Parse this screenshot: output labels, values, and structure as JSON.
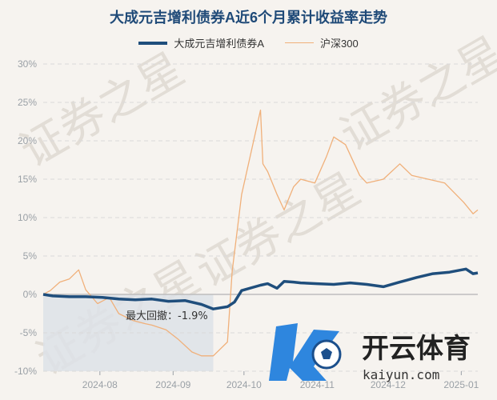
{
  "chart_data": {
    "type": "line",
    "title": "大成元吉增利债券A近6个月累计收益率走势",
    "ylim": [
      -10,
      30
    ],
    "ytick_labels": [
      "30%",
      "25%",
      "20%",
      "15%",
      "10%",
      "5%",
      "0%",
      "-5%",
      "-10%"
    ],
    "xtick_labels": [
      "2024-08",
      "2024-09",
      "2024-10",
      "2024-11",
      "2024-12",
      "2025-01"
    ],
    "x_range": [
      "2024-07-08",
      "2025-01-08"
    ],
    "grid": true,
    "legend_position": "top-center",
    "series": [
      {
        "name": "大成元吉增利债券A",
        "color": "#1f4e7c",
        "points": [
          [
            "2024-07-08",
            0.0
          ],
          [
            "2024-07-12",
            -0.2
          ],
          [
            "2024-07-19",
            -0.3
          ],
          [
            "2024-07-26",
            -0.3
          ],
          [
            "2024-08-02",
            -0.4
          ],
          [
            "2024-08-09",
            -0.6
          ],
          [
            "2024-08-16",
            -0.7
          ],
          [
            "2024-08-23",
            -0.6
          ],
          [
            "2024-08-30",
            -0.9
          ],
          [
            "2024-09-06",
            -0.8
          ],
          [
            "2024-09-13",
            -1.3
          ],
          [
            "2024-09-18",
            -1.9
          ],
          [
            "2024-09-24",
            -1.6
          ],
          [
            "2024-09-27",
            -1.0
          ],
          [
            "2024-09-30",
            0.5
          ],
          [
            "2024-10-08",
            1.2
          ],
          [
            "2024-10-11",
            1.4
          ],
          [
            "2024-10-15",
            0.8
          ],
          [
            "2024-10-18",
            1.7
          ],
          [
            "2024-10-22",
            1.6
          ],
          [
            "2024-10-25",
            1.5
          ],
          [
            "2024-11-01",
            1.4
          ],
          [
            "2024-11-08",
            1.3
          ],
          [
            "2024-11-15",
            1.5
          ],
          [
            "2024-11-22",
            1.3
          ],
          [
            "2024-11-29",
            1.0
          ],
          [
            "2024-12-06",
            1.6
          ],
          [
            "2024-12-13",
            2.2
          ],
          [
            "2024-12-20",
            2.7
          ],
          [
            "2024-12-27",
            2.9
          ],
          [
            "2025-01-03",
            3.3
          ],
          [
            "2025-01-06",
            2.7
          ],
          [
            "2025-01-08",
            2.8
          ]
        ]
      },
      {
        "name": "沪深300",
        "color": "#f0b07a",
        "points": [
          [
            "2024-07-08",
            0.0
          ],
          [
            "2024-07-11",
            0.5
          ],
          [
            "2024-07-15",
            1.6
          ],
          [
            "2024-07-19",
            2.0
          ],
          [
            "2024-07-23",
            3.2
          ],
          [
            "2024-07-26",
            0.6
          ],
          [
            "2024-07-31",
            -1.2
          ],
          [
            "2024-08-05",
            -0.4
          ],
          [
            "2024-08-09",
            -2.5
          ],
          [
            "2024-08-15",
            -3.4
          ],
          [
            "2024-08-20",
            -3.8
          ],
          [
            "2024-08-23",
            -4.0
          ],
          [
            "2024-08-29",
            -4.6
          ],
          [
            "2024-09-03",
            -5.8
          ],
          [
            "2024-09-09",
            -7.5
          ],
          [
            "2024-09-13",
            -8.0
          ],
          [
            "2024-09-18",
            -8.0
          ],
          [
            "2024-09-24",
            -6.2
          ],
          [
            "2024-09-26",
            3.0
          ],
          [
            "2024-09-30",
            13.0
          ],
          [
            "2024-10-08",
            24.0
          ],
          [
            "2024-10-09",
            17.0
          ],
          [
            "2024-10-11",
            16.0
          ],
          [
            "2024-10-15",
            13.0
          ],
          [
            "2024-10-18",
            11.0
          ],
          [
            "2024-10-22",
            14.0
          ],
          [
            "2024-10-25",
            15.0
          ],
          [
            "2024-10-31",
            14.5
          ],
          [
            "2024-11-05",
            18.0
          ],
          [
            "2024-11-08",
            20.5
          ],
          [
            "2024-11-13",
            19.5
          ],
          [
            "2024-11-19",
            15.5
          ],
          [
            "2024-11-22",
            14.5
          ],
          [
            "2024-11-29",
            15.0
          ],
          [
            "2024-12-06",
            17.0
          ],
          [
            "2024-12-11",
            15.5
          ],
          [
            "2024-12-18",
            15.0
          ],
          [
            "2024-12-25",
            14.5
          ],
          [
            "2025-01-02",
            12.0
          ],
          [
            "2025-01-06",
            10.5
          ],
          [
            "2025-01-08",
            11.0
          ]
        ]
      }
    ],
    "annotations": {
      "max_drawdown_label": "最大回撤：-1.9%",
      "drawdown_start": "2024-07-08",
      "drawdown_end": "2024-09-18"
    }
  },
  "watermark": {
    "text": "证券之星"
  },
  "logo": {
    "name": "开云体育",
    "url": "kaiyun.com"
  }
}
